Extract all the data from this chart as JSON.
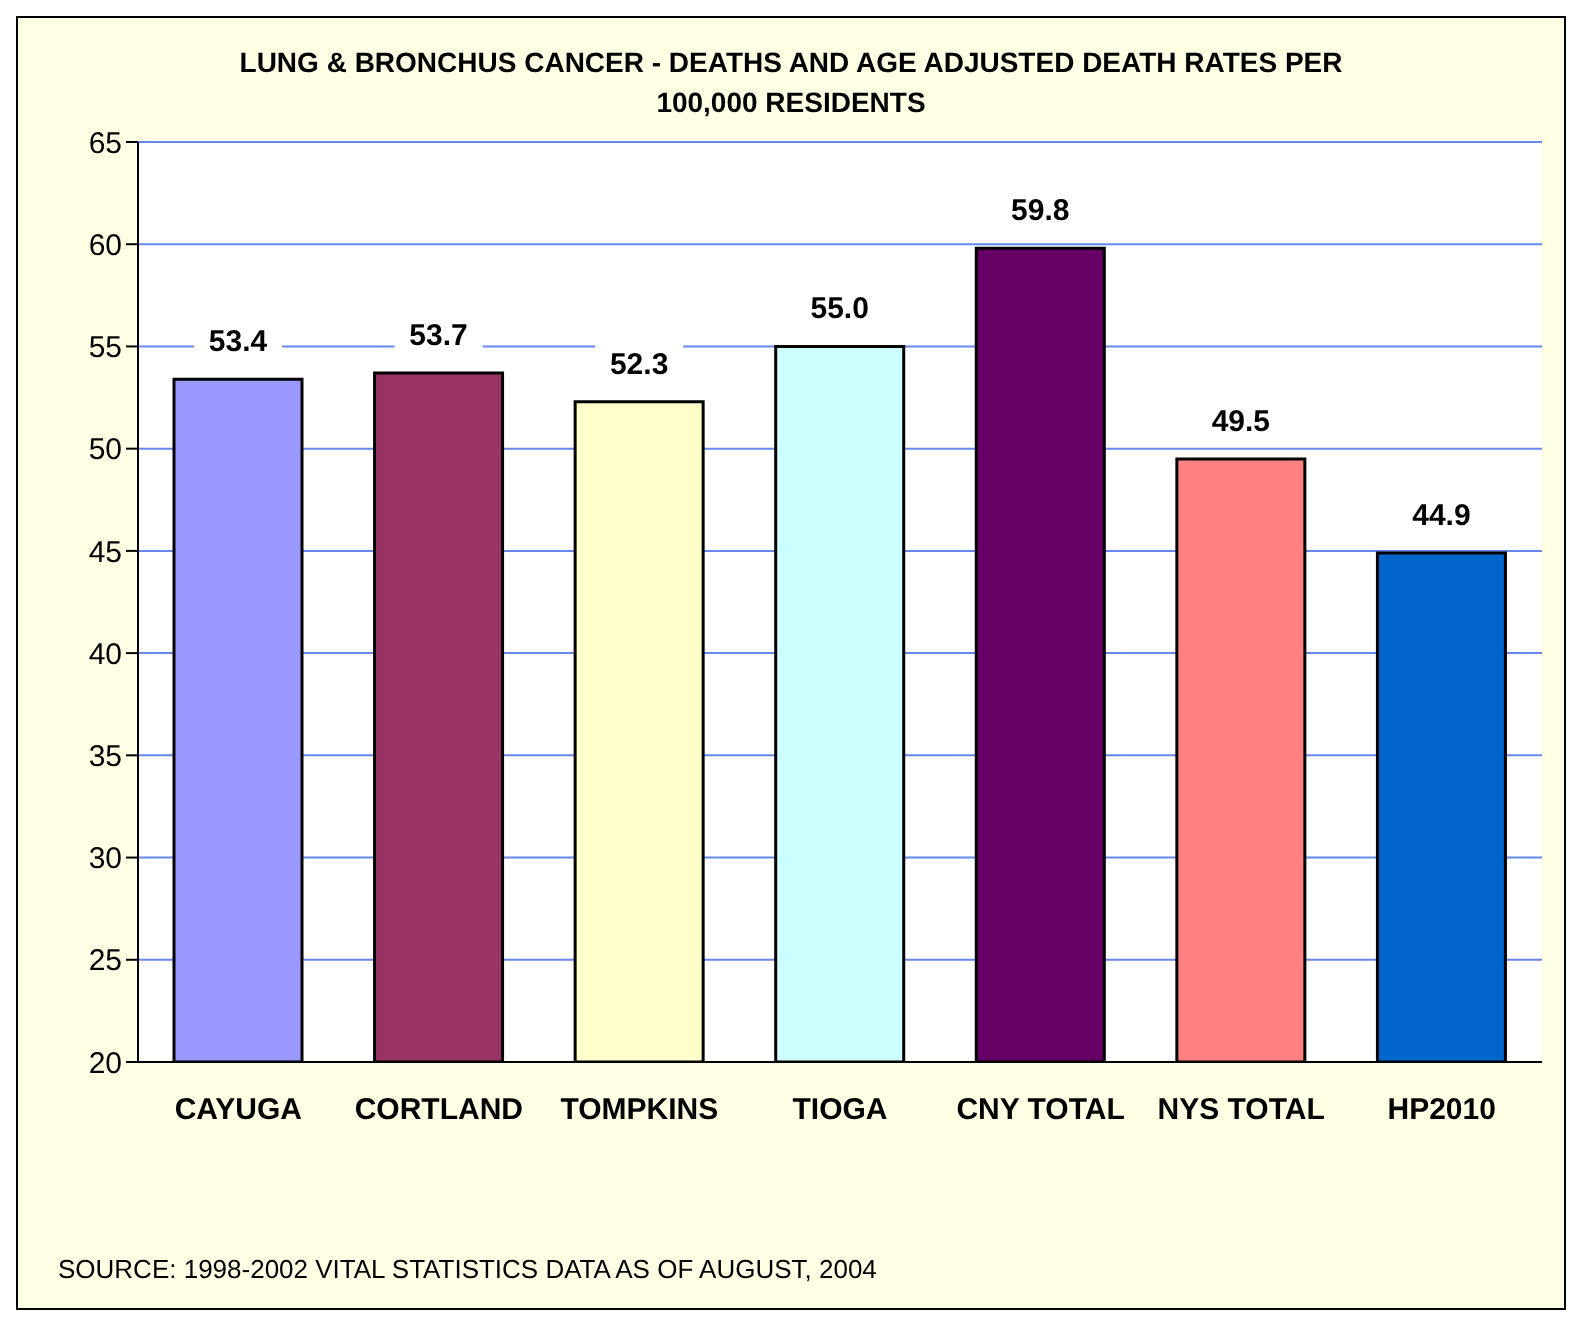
{
  "chart_data": {
    "type": "bar",
    "title": "LUNG & BRONCHUS CANCER - DEATHS AND AGE ADJUSTED DEATH RATES PER 100,000 RESIDENTS",
    "categories": [
      "CAYUGA",
      "CORTLAND",
      "TOMPKINS",
      "TIOGA",
      "CNY TOTAL",
      "NYS TOTAL",
      "HP2010"
    ],
    "values": [
      53.4,
      53.7,
      52.3,
      55.0,
      59.8,
      49.5,
      44.9
    ],
    "colors": [
      "#9999ff",
      "#993366",
      "#ffffcc",
      "#ccffff",
      "#660066",
      "#ff8080",
      "#0066cc"
    ],
    "value_labels": [
      "53.4",
      "53.7",
      "52.3",
      "55.0",
      "59.8",
      "49.5",
      "44.9"
    ],
    "ylim": [
      20,
      65
    ],
    "yticks": [
      20,
      25,
      30,
      35,
      40,
      45,
      50,
      55,
      60,
      65
    ],
    "grid": "y",
    "annotations": [
      "SOURCE: 1998-2002 VITAL STATISTICS DATA AS OF AUGUST, 2004"
    ]
  }
}
